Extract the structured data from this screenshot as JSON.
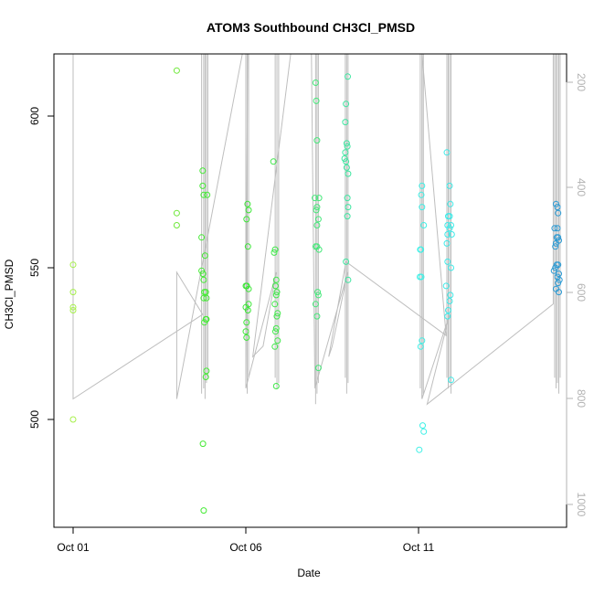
{
  "chart_data": {
    "type": "scatter",
    "title": "ATOM3 Southbound CH3Cl_PMSD",
    "xlabel": "Date",
    "ylabel": "CH3Cl_PMSD",
    "x_ticks": [
      "Oct 01",
      "Oct 06",
      "Oct 11"
    ],
    "y_ticks": [
      "500",
      "550",
      "600"
    ],
    "y2_ticks": [
      "200",
      "400",
      "600",
      "800",
      "1000"
    ],
    "xlim": [
      0,
      14.3
    ],
    "ylim": [
      466,
      620
    ],
    "y2lim": [
      100,
      1030
    ],
    "y2_reversed": true,
    "grid": false,
    "colors": {
      "profile_line": "#bebebe",
      "axis": "#000000",
      "secondary_axis": "#b3b3b3"
    },
    "series": [
      {
        "points": [
          {
            "x": 0.0,
            "y": 551,
            "c": "#a6f04a"
          },
          {
            "x": 0.0,
            "y": 542,
            "c": "#a6f04a"
          },
          {
            "x": 0.0,
            "y": 537,
            "c": "#a6f04a"
          },
          {
            "x": 0.0,
            "y": 536,
            "c": "#a6f04a"
          },
          {
            "x": 0.0,
            "y": 500,
            "c": "#a6f04a"
          },
          {
            "x": 3.0,
            "y": 615,
            "c": "#6fe83a"
          },
          {
            "x": 3.0,
            "y": 568,
            "c": "#6fe83a"
          },
          {
            "x": 3.0,
            "y": 564,
            "c": "#6fe83a"
          },
          {
            "x": 3.75,
            "y": 582,
            "c": "#44ea34"
          },
          {
            "x": 3.75,
            "y": 577,
            "c": "#44ea34"
          },
          {
            "x": 3.78,
            "y": 574,
            "c": "#44ea34"
          },
          {
            "x": 3.88,
            "y": 574,
            "c": "#44ea34"
          },
          {
            "x": 3.72,
            "y": 560,
            "c": "#44ea34"
          },
          {
            "x": 3.82,
            "y": 554,
            "c": "#44ea34"
          },
          {
            "x": 3.72,
            "y": 549,
            "c": "#44ea34"
          },
          {
            "x": 3.76,
            "y": 548,
            "c": "#44ea34"
          },
          {
            "x": 3.78,
            "y": 546,
            "c": "#44ea34"
          },
          {
            "x": 3.84,
            "y": 542,
            "c": "#44ea34"
          },
          {
            "x": 3.8,
            "y": 542,
            "c": "#44ea34"
          },
          {
            "x": 3.86,
            "y": 540,
            "c": "#44ea34"
          },
          {
            "x": 3.78,
            "y": 540,
            "c": "#44ea34"
          },
          {
            "x": 3.84,
            "y": 533,
            "c": "#44ea34"
          },
          {
            "x": 3.8,
            "y": 532,
            "c": "#44ea34"
          },
          {
            "x": 3.86,
            "y": 533,
            "c": "#44ea34"
          },
          {
            "x": 3.86,
            "y": 516,
            "c": "#44ea34"
          },
          {
            "x": 3.84,
            "y": 514,
            "c": "#44ea34"
          },
          {
            "x": 3.76,
            "y": 492,
            "c": "#44ea34"
          },
          {
            "x": 3.78,
            "y": 470,
            "c": "#44ea34"
          },
          {
            "x": 5.05,
            "y": 571,
            "c": "#3be636"
          },
          {
            "x": 5.08,
            "y": 569,
            "c": "#3be636"
          },
          {
            "x": 5.02,
            "y": 566,
            "c": "#3be636"
          },
          {
            "x": 5.06,
            "y": 557,
            "c": "#3be636"
          },
          {
            "x": 5.03,
            "y": 544,
            "c": "#3be636"
          },
          {
            "x": 5.08,
            "y": 543,
            "c": "#3be636"
          },
          {
            "x": 5.0,
            "y": 544,
            "c": "#3be636"
          },
          {
            "x": 5.08,
            "y": 538,
            "c": "#3be636"
          },
          {
            "x": 5.06,
            "y": 536,
            "c": "#3be636"
          },
          {
            "x": 5.0,
            "y": 537,
            "c": "#3be636"
          },
          {
            "x": 5.02,
            "y": 532,
            "c": "#3be636"
          },
          {
            "x": 5.0,
            "y": 529,
            "c": "#3be636"
          },
          {
            "x": 5.02,
            "y": 527,
            "c": "#3be636"
          },
          {
            "x": 5.8,
            "y": 585,
            "c": "#40e84a"
          },
          {
            "x": 5.85,
            "y": 556,
            "c": "#40e84a"
          },
          {
            "x": 5.82,
            "y": 555,
            "c": "#40e84a"
          },
          {
            "x": 5.88,
            "y": 546,
            "c": "#40e84a"
          },
          {
            "x": 5.86,
            "y": 544,
            "c": "#40e84a"
          },
          {
            "x": 5.9,
            "y": 542,
            "c": "#40e84a"
          },
          {
            "x": 5.88,
            "y": 541,
            "c": "#40e84a"
          },
          {
            "x": 5.84,
            "y": 538,
            "c": "#40e84a"
          },
          {
            "x": 5.92,
            "y": 535,
            "c": "#40e84a"
          },
          {
            "x": 5.9,
            "y": 534,
            "c": "#40e84a"
          },
          {
            "x": 5.88,
            "y": 530,
            "c": "#40e84a"
          },
          {
            "x": 5.86,
            "y": 529,
            "c": "#40e84a"
          },
          {
            "x": 5.92,
            "y": 526,
            "c": "#40e84a"
          },
          {
            "x": 5.84,
            "y": 524,
            "c": "#40e84a"
          },
          {
            "x": 5.88,
            "y": 511,
            "c": "#40e84a"
          },
          {
            "x": 7.02,
            "y": 611,
            "c": "#46e87a"
          },
          {
            "x": 7.04,
            "y": 605,
            "c": "#46e87a"
          },
          {
            "x": 7.06,
            "y": 592,
            "c": "#46e87a"
          },
          {
            "x": 7.0,
            "y": 573,
            "c": "#46e87a"
          },
          {
            "x": 7.12,
            "y": 573,
            "c": "#46e87a"
          },
          {
            "x": 7.06,
            "y": 570,
            "c": "#46e87a"
          },
          {
            "x": 7.04,
            "y": 569,
            "c": "#46e87a"
          },
          {
            "x": 7.1,
            "y": 566,
            "c": "#46e87a"
          },
          {
            "x": 7.06,
            "y": 564,
            "c": "#46e87a"
          },
          {
            "x": 7.02,
            "y": 557,
            "c": "#46e87a"
          },
          {
            "x": 7.06,
            "y": 557,
            "c": "#46e87a"
          },
          {
            "x": 7.12,
            "y": 556,
            "c": "#46e87a"
          },
          {
            "x": 7.08,
            "y": 542,
            "c": "#46e87a"
          },
          {
            "x": 7.1,
            "y": 541,
            "c": "#46e87a"
          },
          {
            "x": 7.02,
            "y": 538,
            "c": "#46e87a"
          },
          {
            "x": 7.06,
            "y": 534,
            "c": "#46e87a"
          },
          {
            "x": 7.1,
            "y": 517,
            "c": "#46e87a"
          },
          {
            "x": 7.95,
            "y": 613,
            "c": "#3ee6a0"
          },
          {
            "x": 7.9,
            "y": 604,
            "c": "#3ee6a0"
          },
          {
            "x": 7.88,
            "y": 598,
            "c": "#3ee6a0"
          },
          {
            "x": 7.92,
            "y": 591,
            "c": "#3ee6a0"
          },
          {
            "x": 7.94,
            "y": 590,
            "c": "#3ee6a0"
          },
          {
            "x": 7.88,
            "y": 588,
            "c": "#3ee6a0"
          },
          {
            "x": 7.86,
            "y": 586,
            "c": "#3ee6a0"
          },
          {
            "x": 7.9,
            "y": 585,
            "c": "#3ee6a0"
          },
          {
            "x": 7.92,
            "y": 583,
            "c": "#3ee6a0"
          },
          {
            "x": 7.96,
            "y": 581,
            "c": "#3ee6a0"
          },
          {
            "x": 7.94,
            "y": 573,
            "c": "#3ee6a0"
          },
          {
            "x": 7.96,
            "y": 570,
            "c": "#3ee6a0"
          },
          {
            "x": 7.94,
            "y": 567,
            "c": "#3ee6a0"
          },
          {
            "x": 7.9,
            "y": 552,
            "c": "#3ee6a0"
          },
          {
            "x": 7.96,
            "y": 546,
            "c": "#3ee6a0"
          },
          {
            "x": 10.1,
            "y": 577,
            "c": "#3ef0e6"
          },
          {
            "x": 10.08,
            "y": 574,
            "c": "#3ef0e6"
          },
          {
            "x": 10.1,
            "y": 570,
            "c": "#3ef0e6"
          },
          {
            "x": 10.15,
            "y": 564,
            "c": "#3ef0e6"
          },
          {
            "x": 10.05,
            "y": 556,
            "c": "#3ef0e6"
          },
          {
            "x": 10.07,
            "y": 556,
            "c": "#3ef0e6"
          },
          {
            "x": 10.04,
            "y": 547,
            "c": "#3ef0e6"
          },
          {
            "x": 10.08,
            "y": 547,
            "c": "#3ef0e6"
          },
          {
            "x": 10.1,
            "y": 526,
            "c": "#3ef0e6"
          },
          {
            "x": 10.06,
            "y": 524,
            "c": "#3ef0e6"
          },
          {
            "x": 10.12,
            "y": 498,
            "c": "#3ef0e6"
          },
          {
            "x": 10.15,
            "y": 496,
            "c": "#3ef0e6"
          },
          {
            "x": 10.02,
            "y": 490,
            "c": "#3ef0e6"
          },
          {
            "x": 10.82,
            "y": 588,
            "c": "#3eeae8"
          },
          {
            "x": 10.9,
            "y": 577,
            "c": "#3eeae8"
          },
          {
            "x": 10.92,
            "y": 571,
            "c": "#3eeae8"
          },
          {
            "x": 10.9,
            "y": 567,
            "c": "#3eeae8"
          },
          {
            "x": 10.86,
            "y": 567,
            "c": "#3eeae8"
          },
          {
            "x": 10.84,
            "y": 564,
            "c": "#3eeae8"
          },
          {
            "x": 10.94,
            "y": 564,
            "c": "#3eeae8"
          },
          {
            "x": 10.9,
            "y": 563,
            "c": "#3eeae8"
          },
          {
            "x": 10.84,
            "y": 561,
            "c": "#3eeae8"
          },
          {
            "x": 10.96,
            "y": 561,
            "c": "#3eeae8"
          },
          {
            "x": 10.82,
            "y": 558,
            "c": "#3eeae8"
          },
          {
            "x": 10.84,
            "y": 552,
            "c": "#3eeae8"
          },
          {
            "x": 10.94,
            "y": 550,
            "c": "#3eeae8"
          },
          {
            "x": 10.8,
            "y": 544,
            "c": "#3eeae8"
          },
          {
            "x": 10.92,
            "y": 541,
            "c": "#3eeae8"
          },
          {
            "x": 10.9,
            "y": 539,
            "c": "#3eeae8"
          },
          {
            "x": 10.86,
            "y": 536,
            "c": "#3eeae8"
          },
          {
            "x": 10.84,
            "y": 534,
            "c": "#3eeae8"
          },
          {
            "x": 10.94,
            "y": 513,
            "c": "#3eeae8"
          },
          {
            "x": 13.98,
            "y": 571,
            "c": "#2a9ad4"
          },
          {
            "x": 14.02,
            "y": 570,
            "c": "#2a9ad4"
          },
          {
            "x": 14.04,
            "y": 568,
            "c": "#2a9ad4"
          },
          {
            "x": 13.94,
            "y": 563,
            "c": "#2a9ad4"
          },
          {
            "x": 14.02,
            "y": 563,
            "c": "#2a9ad4"
          },
          {
            "x": 14.04,
            "y": 560,
            "c": "#2a9ad4"
          },
          {
            "x": 14.0,
            "y": 560,
            "c": "#2a9ad4"
          },
          {
            "x": 13.98,
            "y": 558,
            "c": "#2a9ad4"
          },
          {
            "x": 13.96,
            "y": 557,
            "c": "#2a9ad4"
          },
          {
            "x": 14.06,
            "y": 559,
            "c": "#2a9ad4"
          },
          {
            "x": 14.0,
            "y": 551,
            "c": "#2a9ad4"
          },
          {
            "x": 14.04,
            "y": 551,
            "c": "#2a9ad4"
          },
          {
            "x": 13.96,
            "y": 550,
            "c": "#2a9ad4"
          },
          {
            "x": 13.92,
            "y": 549,
            "c": "#2a9ad4"
          },
          {
            "x": 14.06,
            "y": 548,
            "c": "#2a9ad4"
          },
          {
            "x": 14.02,
            "y": 547,
            "c": "#2a9ad4"
          },
          {
            "x": 14.08,
            "y": 546,
            "c": "#2a9ad4"
          },
          {
            "x": 14.04,
            "y": 545,
            "c": "#2a9ad4"
          },
          {
            "x": 13.98,
            "y": 543,
            "c": "#2a9ad4"
          },
          {
            "x": 14.06,
            "y": 542,
            "c": "#2a9ad4"
          }
        ]
      }
    ],
    "profile_spikes": [
      {
        "x": 3.78,
        "top": 100,
        "bottom": 780
      },
      {
        "x": 3.82,
        "top": 100,
        "bottom": 800
      },
      {
        "x": 3.86,
        "top": 100,
        "bottom": 770
      },
      {
        "x": 3.9,
        "top": 100,
        "bottom": 760
      },
      {
        "x": 3.72,
        "top": 100,
        "bottom": 790
      },
      {
        "x": 5.0,
        "top": 100,
        "bottom": 770
      },
      {
        "x": 5.04,
        "top": 100,
        "bottom": 790
      },
      {
        "x": 5.08,
        "top": 100,
        "bottom": 760
      },
      {
        "x": 5.85,
        "top": 100,
        "bottom": 760
      },
      {
        "x": 5.9,
        "top": 100,
        "bottom": 780
      },
      {
        "x": 5.95,
        "top": 100,
        "bottom": 770
      },
      {
        "x": 7.02,
        "top": 100,
        "bottom": 810
      },
      {
        "x": 7.06,
        "top": 100,
        "bottom": 790
      },
      {
        "x": 7.1,
        "top": 100,
        "bottom": 770
      },
      {
        "x": 7.88,
        "top": 100,
        "bottom": 760
      },
      {
        "x": 7.92,
        "top": 100,
        "bottom": 790
      },
      {
        "x": 7.96,
        "top": 100,
        "bottom": 770
      },
      {
        "x": 10.05,
        "top": 100,
        "bottom": 780
      },
      {
        "x": 10.1,
        "top": 100,
        "bottom": 800
      },
      {
        "x": 10.14,
        "top": 100,
        "bottom": 790
      },
      {
        "x": 10.82,
        "top": 100,
        "bottom": 760
      },
      {
        "x": 10.86,
        "top": 100,
        "bottom": 780
      },
      {
        "x": 10.9,
        "top": 100,
        "bottom": 770
      },
      {
        "x": 10.94,
        "top": 100,
        "bottom": 790
      },
      {
        "x": 13.94,
        "top": 100,
        "bottom": 760
      },
      {
        "x": 13.98,
        "top": 100,
        "bottom": 780
      },
      {
        "x": 14.02,
        "top": 100,
        "bottom": 770
      },
      {
        "x": 14.06,
        "top": 100,
        "bottom": 790
      },
      {
        "x": 14.1,
        "top": 100,
        "bottom": 760
      }
    ],
    "profile_path": [
      {
        "x": 0.0,
        "y2": 100
      },
      {
        "x": 0.0,
        "y2": 800
      },
      {
        "x": 3.75,
        "y2": 640
      },
      {
        "x": 3.0,
        "y2": 560
      },
      {
        "x": 3.0,
        "y2": 800
      },
      {
        "x": 4.9,
        "y2": 100
      },
      {
        "x": 5.05,
        "y2": 100
      },
      {
        "x": 5.0,
        "y2": 780
      },
      {
        "x": 5.88,
        "y2": 560
      },
      {
        "x": 5.5,
        "y2": 700
      },
      {
        "x": 5.2,
        "y2": 720
      },
      {
        "x": 6.3,
        "y2": 100
      },
      {
        "x": 6.9,
        "y2": 100
      },
      {
        "x": 7.0,
        "y2": 780
      },
      {
        "x": 7.95,
        "y2": 560
      },
      {
        "x": 7.5,
        "y2": 700
      },
      {
        "x": 7.4,
        "y2": 720
      },
      {
        "x": 7.9,
        "y2": 540
      },
      {
        "x": 10.8,
        "y2": 680
      },
      {
        "x": 10.1,
        "y2": 100
      },
      {
        "x": 10.1,
        "y2": 800
      },
      {
        "x": 10.9,
        "y2": 640
      },
      {
        "x": 10.25,
        "y2": 810
      },
      {
        "x": 13.9,
        "y2": 620
      },
      {
        "x": 13.9,
        "y2": 100
      }
    ]
  }
}
